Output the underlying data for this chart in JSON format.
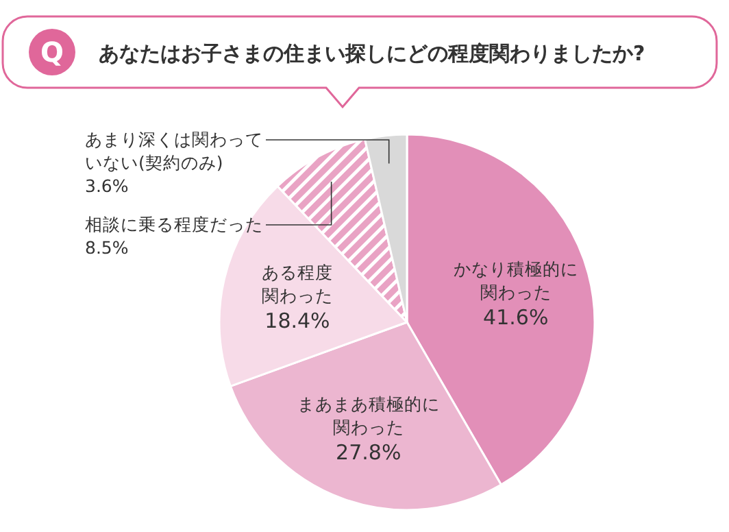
{
  "chart_data": {
    "type": "pie",
    "title": "あなたはお子さまの住まい探しにどの程度関わりましたか?",
    "annotations": [
      "Q"
    ],
    "categories": [
      "かなり積極的に関わった",
      "まあまあ積極的に関わった",
      "ある程度関わった",
      "相談に乗る程度だった",
      "あまり深くは関わっていない(契約のみ)"
    ],
    "values": [
      41.6,
      27.8,
      18.4,
      8.5,
      3.6
    ],
    "colors": [
      "#e28fb8",
      "#ecb6d0",
      "#f7dbe8",
      "#e9a3c4",
      "#d9d9d9"
    ],
    "value_labels": [
      "41.6%",
      "27.8%",
      "18.4%",
      "8.5%",
      "3.6%"
    ]
  }
}
